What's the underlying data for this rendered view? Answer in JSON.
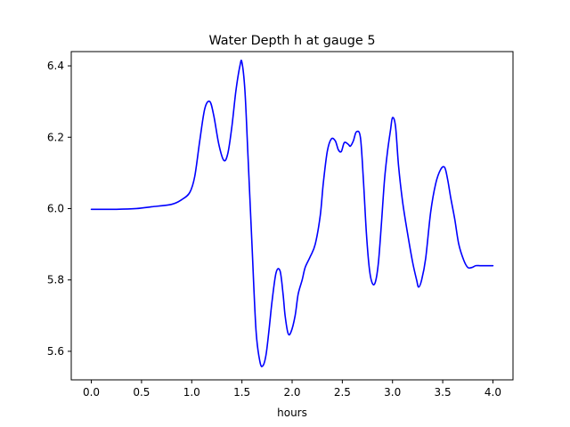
{
  "chart_data": {
    "type": "line",
    "title": "Water Depth h at gauge 5",
    "xlabel": "hours",
    "ylabel": "",
    "xlim": [
      -0.2,
      4.2
    ],
    "ylim": [
      5.52,
      6.44
    ],
    "grid": false,
    "legend": "none",
    "x_ticks": [
      {
        "value": 0.0,
        "label": "0.0"
      },
      {
        "value": 0.5,
        "label": "0.5"
      },
      {
        "value": 1.0,
        "label": "1.0"
      },
      {
        "value": 1.5,
        "label": "1.5"
      },
      {
        "value": 2.0,
        "label": "2.0"
      },
      {
        "value": 2.5,
        "label": "2.5"
      },
      {
        "value": 3.0,
        "label": "3.0"
      },
      {
        "value": 3.5,
        "label": "3.5"
      },
      {
        "value": 4.0,
        "label": "4.0"
      }
    ],
    "y_ticks": [
      {
        "value": 5.6,
        "label": "5.6"
      },
      {
        "value": 5.8,
        "label": "5.8"
      },
      {
        "value": 6.0,
        "label": "6.0"
      },
      {
        "value": 6.2,
        "label": "6.2"
      },
      {
        "value": 6.4,
        "label": "6.4"
      }
    ],
    "series": [
      {
        "color": "#0000ff",
        "x": [
          0.0,
          0.25,
          0.45,
          0.6,
          0.8,
          0.9,
          0.98,
          1.03,
          1.08,
          1.13,
          1.18,
          1.22,
          1.27,
          1.32,
          1.36,
          1.4,
          1.44,
          1.48,
          1.5,
          1.53,
          1.56,
          1.6,
          1.64,
          1.68,
          1.71,
          1.74,
          1.77,
          1.8,
          1.84,
          1.88,
          1.91,
          1.93,
          1.96,
          1.99,
          2.03,
          2.06,
          2.1,
          2.13,
          2.18,
          2.23,
          2.28,
          2.31,
          2.35,
          2.39,
          2.43,
          2.46,
          2.49,
          2.52,
          2.56,
          2.58,
          2.61,
          2.64,
          2.68,
          2.71,
          2.74,
          2.77,
          2.8,
          2.83,
          2.86,
          2.89,
          2.92,
          2.95,
          2.98,
          3.0,
          3.03,
          3.06,
          3.1,
          3.15,
          3.2,
          3.24,
          3.26,
          3.29,
          3.33,
          3.38,
          3.43,
          3.48,
          3.52,
          3.55,
          3.58,
          3.62,
          3.66,
          3.71,
          3.75,
          3.79,
          3.83,
          3.87,
          3.91,
          3.95,
          3.98,
          4.0
        ],
        "y": [
          5.998,
          5.998,
          6.0,
          6.005,
          6.012,
          6.025,
          6.045,
          6.09,
          6.19,
          6.28,
          6.3,
          6.26,
          6.18,
          6.135,
          6.155,
          6.23,
          6.33,
          6.4,
          6.41,
          6.33,
          6.15,
          5.9,
          5.66,
          5.57,
          5.56,
          5.59,
          5.66,
          5.74,
          5.82,
          5.825,
          5.76,
          5.7,
          5.65,
          5.655,
          5.7,
          5.76,
          5.8,
          5.835,
          5.865,
          5.9,
          5.98,
          6.07,
          6.16,
          6.195,
          6.19,
          6.165,
          6.16,
          6.185,
          6.18,
          6.175,
          6.19,
          6.215,
          6.2,
          6.08,
          5.93,
          5.83,
          5.79,
          5.795,
          5.85,
          5.96,
          6.08,
          6.16,
          6.22,
          6.255,
          6.23,
          6.12,
          6.02,
          5.93,
          5.85,
          5.8,
          5.78,
          5.8,
          5.86,
          5.99,
          6.07,
          6.11,
          6.115,
          6.08,
          6.03,
          5.97,
          5.9,
          5.855,
          5.835,
          5.835,
          5.84,
          5.84,
          5.84,
          5.84,
          5.84,
          5.84
        ]
      }
    ]
  }
}
